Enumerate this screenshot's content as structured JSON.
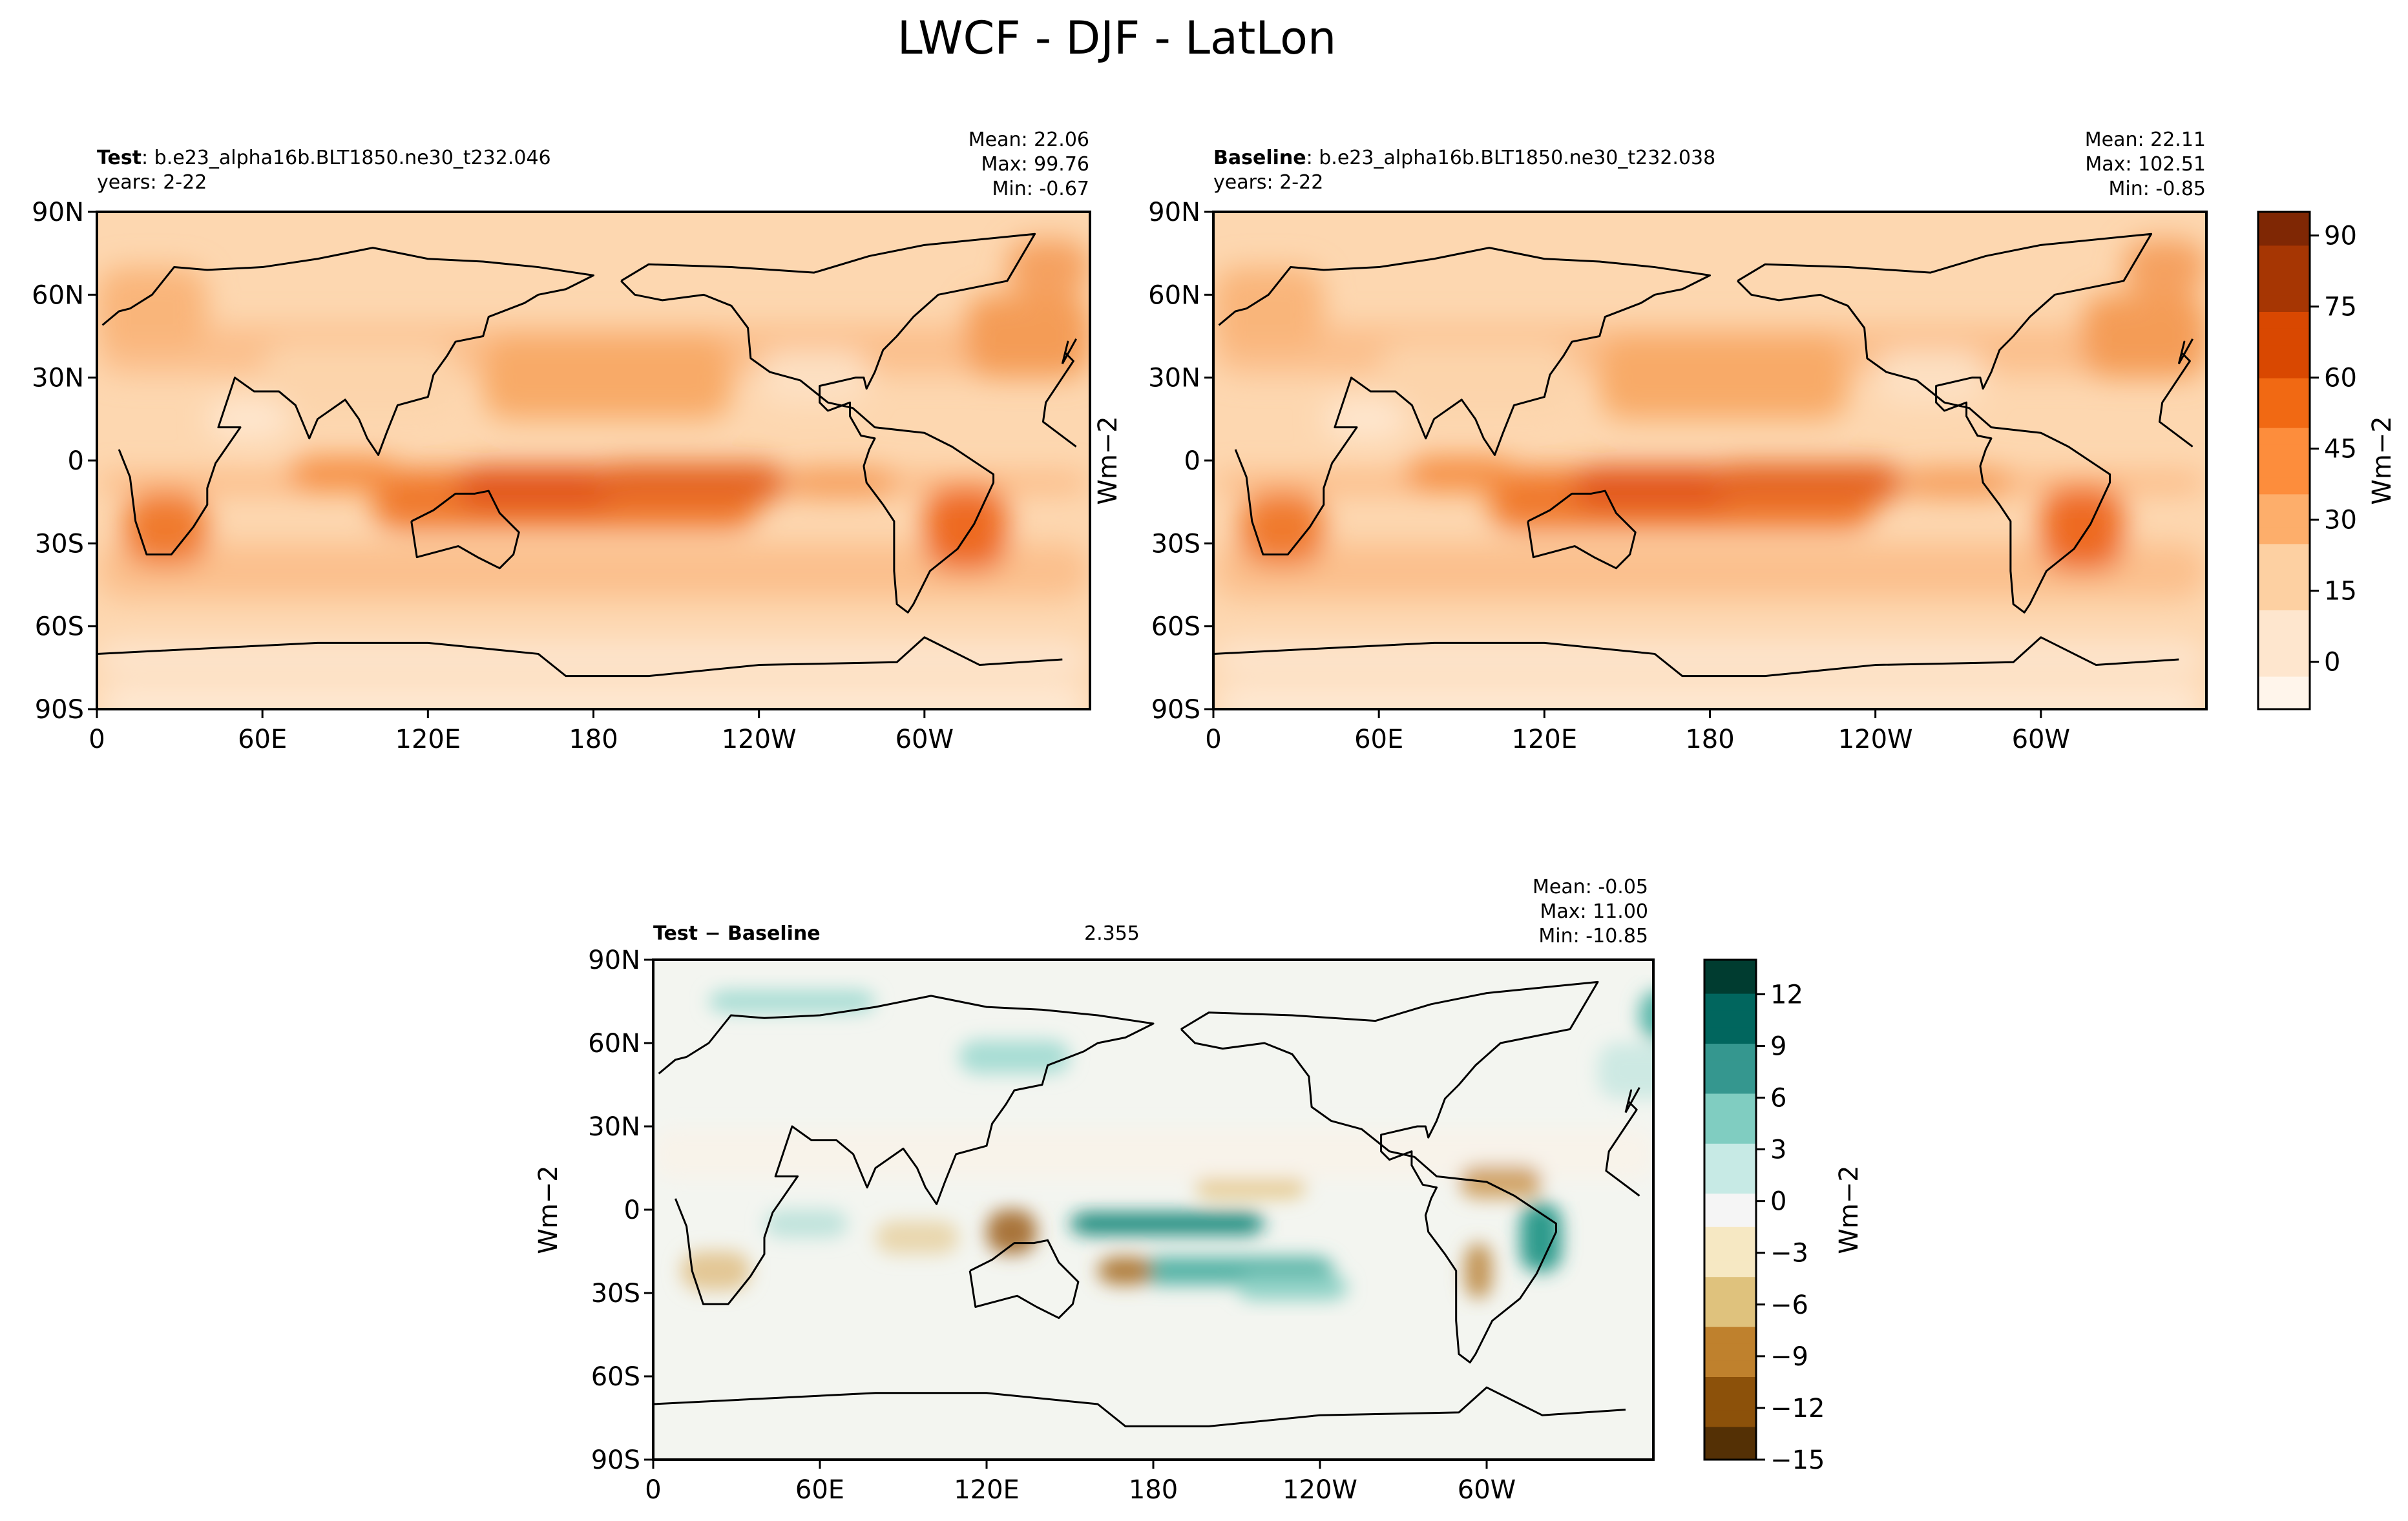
{
  "figure_title": "LWCF - DJF - LatLon",
  "chart_data": [
    {
      "type": "heatmap",
      "panel": "test",
      "label_bold": "Test",
      "label_rest": ": b.e23_alpha16b.BLT1850.ne30_t232.046",
      "years": "years: 2-22",
      "stats": [
        "Mean: 22.06",
        "Max: 99.76",
        "Min: -0.67"
      ],
      "ylabel": "Wm$^{-2}$",
      "ylabel_display": "Wm−2",
      "xticks": [
        "0",
        "60E",
        "120E",
        "180",
        "120W",
        "60W"
      ],
      "yticks": [
        "90N",
        "60N",
        "30N",
        "0",
        "30S",
        "60S",
        "90S"
      ],
      "xlim": [
        0,
        360
      ],
      "ylim": [
        -90,
        90
      ],
      "mean": 22.06,
      "max": 99.76,
      "min": -0.67
    },
    {
      "type": "heatmap",
      "panel": "baseline",
      "label_bold": "Baseline",
      "label_rest": ": b.e23_alpha16b.BLT1850.ne30_t232.038",
      "years": "years: 2-22",
      "stats": [
        "Mean: 22.11",
        "Max: 102.51",
        "Min: -0.85"
      ],
      "xticks": [
        "0",
        "60E",
        "120E",
        "180",
        "120W",
        "60W"
      ],
      "yticks": [
        "90N",
        "60N",
        "30N",
        "0",
        "30S",
        "60S",
        "90S"
      ],
      "xlim": [
        0,
        360
      ],
      "ylim": [
        -90,
        90
      ],
      "mean": 22.11,
      "max": 102.51,
      "min": -0.85,
      "colorbar": {
        "ticks": [
          "90",
          "75",
          "60",
          "45",
          "30",
          "15",
          "0"
        ],
        "range": [
          -10,
          95
        ],
        "label": "Wm−2",
        "colors": [
          "#fff5eb",
          "#fee6ce",
          "#fdd0a2",
          "#fdae6b",
          "#fd8d3c",
          "#f16913",
          "#d94801",
          "#a63603",
          "#7f2704"
        ]
      }
    },
    {
      "type": "heatmap",
      "panel": "difference",
      "label": "Test − Baseline",
      "rmse": 2.355,
      "stats": [
        "Mean: -0.05",
        "Max: 11.00",
        "Min: -10.85"
      ],
      "ylabel": "Wm−2",
      "xticks": [
        "0",
        "60E",
        "120E",
        "180",
        "120W",
        "60W"
      ],
      "yticks": [
        "90N",
        "60N",
        "30N",
        "0",
        "30S",
        "60S",
        "90S"
      ],
      "xlim": [
        0,
        360
      ],
      "ylim": [
        -90,
        90
      ],
      "mean": -0.05,
      "max": 11.0,
      "min": -10.85,
      "colorbar": {
        "ticks": [
          "12",
          "9",
          "6",
          "3",
          "0",
          "−3",
          "−6",
          "−9",
          "−12",
          "−15"
        ],
        "range": [
          -15,
          14
        ],
        "label": "Wm−2",
        "colors": [
          "#543005",
          "#8c510a",
          "#bf812d",
          "#dfc27d",
          "#f6e8c3",
          "#f5f5f5",
          "#c7eae5",
          "#80cdc1",
          "#35978f",
          "#01665e",
          "#003c30"
        ]
      }
    }
  ]
}
